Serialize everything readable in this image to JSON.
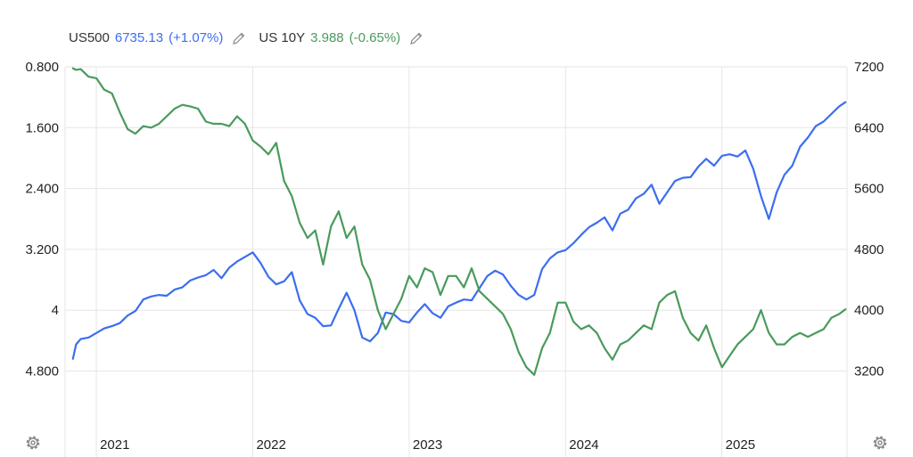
{
  "legend": {
    "series1": {
      "name": "US500",
      "value": "6735.13",
      "change": "(+1.07%)"
    },
    "series2": {
      "name": "US 10Y",
      "value": "3.988",
      "change": "(-0.65%)"
    }
  },
  "colors": {
    "us500": "#3b6ef0",
    "us10y": "#4a9a5c",
    "grid": "#e6e6e6",
    "text": "#222222",
    "icon": "#8a8a8a"
  },
  "icons": {
    "edit": "pencil-icon",
    "settings": "gear-icon"
  },
  "chart_data": {
    "type": "line",
    "x_ticks": [
      "2021",
      "2022",
      "2023",
      "2024",
      "2025"
    ],
    "left_axis": {
      "ticks": [
        "0.800",
        "1.600",
        "2.400",
        "3.200",
        "4",
        "4.800"
      ],
      "range": [
        0.8,
        4.8
      ],
      "inverted": true
    },
    "right_axis": {
      "ticks": [
        "7200",
        "6400",
        "5600",
        "4800",
        "4000",
        "3200"
      ],
      "range": [
        3200,
        7200
      ]
    },
    "grid": true,
    "series": [
      {
        "name": "US500",
        "axis": "right",
        "x": [
          2020.85,
          2020.87,
          2020.9,
          2020.95,
          2021.0,
          2021.05,
          2021.1,
          2021.15,
          2021.2,
          2021.25,
          2021.3,
          2021.35,
          2021.4,
          2021.45,
          2021.5,
          2021.55,
          2021.6,
          2021.65,
          2021.7,
          2021.75,
          2021.8,
          2021.85,
          2021.9,
          2021.95,
          2022.0,
          2022.05,
          2022.1,
          2022.15,
          2022.2,
          2022.25,
          2022.3,
          2022.35,
          2022.4,
          2022.45,
          2022.5,
          2022.55,
          2022.6,
          2022.65,
          2022.7,
          2022.75,
          2022.8,
          2022.85,
          2022.9,
          2022.95,
          2023.0,
          2023.05,
          2023.1,
          2023.15,
          2023.2,
          2023.25,
          2023.3,
          2023.35,
          2023.4,
          2023.45,
          2023.5,
          2023.55,
          2023.6,
          2023.65,
          2023.7,
          2023.75,
          2023.8,
          2023.85,
          2023.9,
          2023.95,
          2024.0,
          2024.05,
          2024.1,
          2024.15,
          2024.2,
          2024.25,
          2024.3,
          2024.35,
          2024.4,
          2024.45,
          2024.5,
          2024.55,
          2024.6,
          2024.65,
          2024.7,
          2024.75,
          2024.8,
          2024.85,
          2024.9,
          2024.95,
          2025.0,
          2025.05,
          2025.1,
          2025.15,
          2025.2,
          2025.25,
          2025.3,
          2025.35,
          2025.4,
          2025.45,
          2025.5,
          2025.55,
          2025.6,
          2025.65,
          2025.7,
          2025.75,
          2025.79
        ],
        "values": [
          3360,
          3550,
          3620,
          3640,
          3700,
          3760,
          3790,
          3830,
          3930,
          3990,
          4140,
          4180,
          4200,
          4190,
          4270,
          4300,
          4390,
          4430,
          4460,
          4530,
          4420,
          4560,
          4640,
          4700,
          4760,
          4620,
          4440,
          4340,
          4380,
          4500,
          4130,
          3950,
          3900,
          3790,
          3800,
          4020,
          4230,
          4000,
          3640,
          3590,
          3700,
          3970,
          3950,
          3860,
          3840,
          3970,
          4080,
          3960,
          3900,
          4050,
          4100,
          4140,
          4130,
          4290,
          4450,
          4520,
          4470,
          4320,
          4200,
          4140,
          4200,
          4540,
          4680,
          4760,
          4790,
          4880,
          4990,
          5090,
          5150,
          5220,
          5050,
          5270,
          5320,
          5470,
          5530,
          5650,
          5400,
          5550,
          5700,
          5740,
          5750,
          5890,
          5990,
          5900,
          6030,
          6050,
          6020,
          6100,
          5860,
          5500,
          5200,
          5550,
          5780,
          5900,
          6150,
          6270,
          6420,
          6480,
          6580,
          6680,
          6735
        ]
      },
      {
        "name": "US 10Y",
        "axis": "left",
        "x": [
          2020.85,
          2020.87,
          2020.9,
          2020.95,
          2021.0,
          2021.05,
          2021.1,
          2021.15,
          2021.2,
          2021.25,
          2021.3,
          2021.35,
          2021.4,
          2021.45,
          2021.5,
          2021.55,
          2021.6,
          2021.65,
          2021.7,
          2021.75,
          2021.8,
          2021.85,
          2021.9,
          2021.95,
          2022.0,
          2022.05,
          2022.1,
          2022.15,
          2022.2,
          2022.25,
          2022.3,
          2022.35,
          2022.4,
          2022.45,
          2022.5,
          2022.55,
          2022.6,
          2022.65,
          2022.7,
          2022.75,
          2022.8,
          2022.85,
          2022.9,
          2022.95,
          2023.0,
          2023.05,
          2023.1,
          2023.15,
          2023.2,
          2023.25,
          2023.3,
          2023.35,
          2023.4,
          2023.45,
          2023.5,
          2023.55,
          2023.6,
          2023.65,
          2023.7,
          2023.75,
          2023.8,
          2023.85,
          2023.9,
          2023.95,
          2024.0,
          2024.05,
          2024.1,
          2024.15,
          2024.2,
          2024.25,
          2024.3,
          2024.35,
          2024.4,
          2024.45,
          2024.5,
          2024.55,
          2024.6,
          2024.65,
          2024.7,
          2024.75,
          2024.8,
          2024.85,
          2024.9,
          2024.95,
          2025.0,
          2025.05,
          2025.1,
          2025.15,
          2025.2,
          2025.25,
          2025.3,
          2025.35,
          2025.4,
          2025.45,
          2025.5,
          2025.55,
          2025.6,
          2025.65,
          2025.7,
          2025.75,
          2025.79
        ],
        "values": [
          0.82,
          0.84,
          0.83,
          0.93,
          0.95,
          1.1,
          1.15,
          1.4,
          1.62,
          1.68,
          1.58,
          1.6,
          1.55,
          1.45,
          1.35,
          1.3,
          1.32,
          1.35,
          1.52,
          1.55,
          1.55,
          1.58,
          1.45,
          1.55,
          1.77,
          1.85,
          1.95,
          1.8,
          2.3,
          2.5,
          2.85,
          3.05,
          2.95,
          3.4,
          2.9,
          2.7,
          3.05,
          2.9,
          3.4,
          3.6,
          4.0,
          4.25,
          4.05,
          3.85,
          3.55,
          3.7,
          3.45,
          3.5,
          3.8,
          3.55,
          3.55,
          3.7,
          3.45,
          3.75,
          3.85,
          3.95,
          4.05,
          4.25,
          4.55,
          4.75,
          4.85,
          4.5,
          4.3,
          3.9,
          3.9,
          4.15,
          4.25,
          4.2,
          4.3,
          4.5,
          4.65,
          4.45,
          4.4,
          4.3,
          4.2,
          4.25,
          3.9,
          3.8,
          3.75,
          4.1,
          4.3,
          4.4,
          4.2,
          4.5,
          4.75,
          4.6,
          4.45,
          4.35,
          4.25,
          4.0,
          4.3,
          4.45,
          4.45,
          4.35,
          4.3,
          4.35,
          4.3,
          4.25,
          4.1,
          4.05,
          3.988
        ]
      }
    ]
  }
}
